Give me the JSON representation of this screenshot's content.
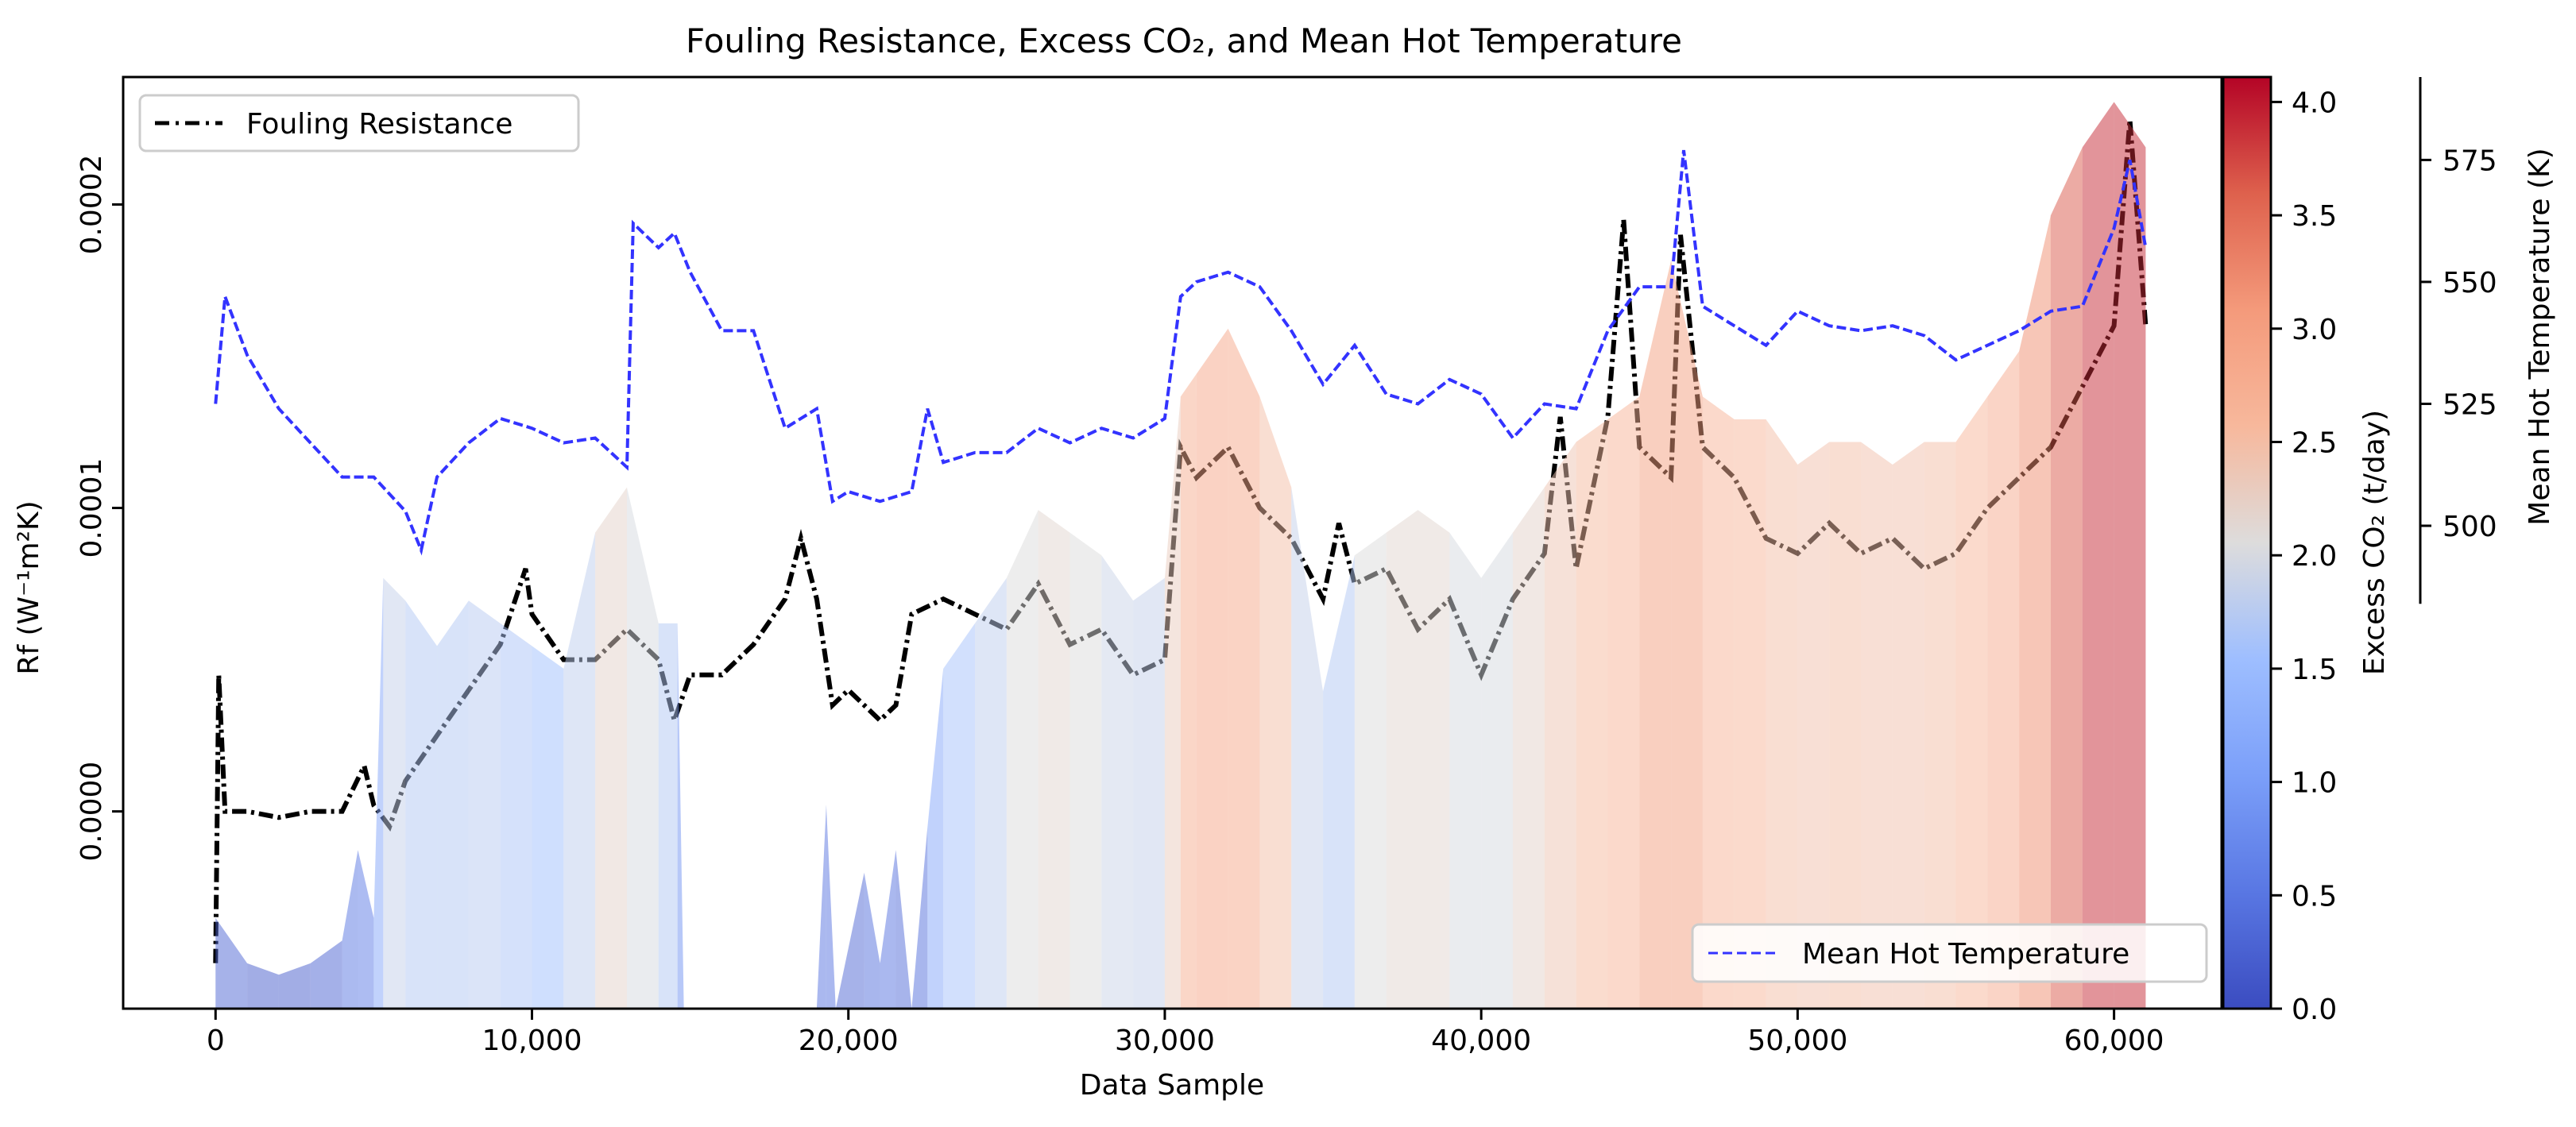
{
  "chart_data": {
    "type": "line",
    "title": "Fouling Resistance, Excess CO₂, and Mean Hot Temperature",
    "xlabel": "Data Sample",
    "ylabel": "Rf (W⁻¹m²K)",
    "y2label": "Mean Hot Temperature (K)",
    "colorbar_label": "Excess CO₂ (t/day)",
    "xlim": [
      -2920,
      63400
    ],
    "ylim": [
      -6.5e-05,
      0.000242
    ],
    "y2lim": [
      401,
      592
    ],
    "y2_spine_range": [
      484,
      592
    ],
    "colorbar_range": [
      0,
      4.11
    ],
    "colormap": "coolwarm",
    "grid": false,
    "x_ticks": [
      0,
      10000,
      20000,
      30000,
      40000,
      50000,
      60000
    ],
    "x_tick_labels": [
      "0",
      "10,000",
      "20,000",
      "30,000",
      "40,000",
      "50,000",
      "60,000"
    ],
    "y_ticks": [
      0,
      0.0001,
      0.0002
    ],
    "y_tick_labels": [
      "0.0000",
      "0.0001",
      "0.0002"
    ],
    "y2_ticks": [
      500,
      525,
      550,
      575
    ],
    "y2_tick_labels": [
      "500",
      "525",
      "550",
      "575"
    ],
    "colorbar_ticks": [
      0,
      0.5,
      1,
      1.5,
      2,
      2.5,
      3,
      3.5,
      4
    ],
    "colorbar_tick_labels": [
      "0.0",
      "0.5",
      "1.0",
      "1.5",
      "2.0",
      "2.5",
      "3.0",
      "3.5",
      "4.0"
    ],
    "legends": [
      {
        "label": "Fouling Resistance",
        "placement": "upper-left",
        "color": "#000000",
        "style": "dash-dot"
      },
      {
        "label": "Mean Hot Temperature",
        "placement": "lower-right",
        "color": "#3333ff",
        "style": "dashed"
      }
    ],
    "series": [
      {
        "name": "Fouling Resistance",
        "axis": "left",
        "color": "#000000",
        "points": [
          [
            0,
            -5e-05
          ],
          [
            100,
            4.5e-05
          ],
          [
            300,
            0.0
          ],
          [
            1000,
            0.0
          ],
          [
            2000,
            -2e-06
          ],
          [
            3000,
            0.0
          ],
          [
            4000,
            0.0
          ],
          [
            4700,
            1.5e-05
          ],
          [
            5000,
            2e-06
          ],
          [
            5500,
            -5e-06
          ],
          [
            6000,
            1e-05
          ],
          [
            7000,
            2.5e-05
          ],
          [
            8000,
            4e-05
          ],
          [
            9000,
            5.5e-05
          ],
          [
            9800,
            8e-05
          ],
          [
            10000,
            6.5e-05
          ],
          [
            11000,
            5e-05
          ],
          [
            12000,
            5e-05
          ],
          [
            13000,
            6e-05
          ],
          [
            14000,
            5e-05
          ],
          [
            14500,
            3e-05
          ],
          [
            15000,
            4.5e-05
          ],
          [
            16000,
            4.5e-05
          ],
          [
            17000,
            5.5e-05
          ],
          [
            18000,
            7e-05
          ],
          [
            18500,
            9e-05
          ],
          [
            19000,
            7e-05
          ],
          [
            19500,
            3.5e-05
          ],
          [
            20000,
            4e-05
          ],
          [
            21000,
            3e-05
          ],
          [
            21500,
            3.5e-05
          ],
          [
            22000,
            6.5e-05
          ],
          [
            23000,
            7e-05
          ],
          [
            24000,
            6.5e-05
          ],
          [
            25000,
            6e-05
          ],
          [
            26000,
            7.5e-05
          ],
          [
            27000,
            5.5e-05
          ],
          [
            28000,
            6e-05
          ],
          [
            29000,
            4.5e-05
          ],
          [
            30000,
            5e-05
          ],
          [
            30500,
            0.00012
          ],
          [
            31000,
            0.00011
          ],
          [
            32000,
            0.00012
          ],
          [
            33000,
            0.0001
          ],
          [
            34000,
            9e-05
          ],
          [
            35000,
            7e-05
          ],
          [
            35500,
            9.5e-05
          ],
          [
            36000,
            7.5e-05
          ],
          [
            37000,
            8e-05
          ],
          [
            38000,
            6e-05
          ],
          [
            39000,
            7e-05
          ],
          [
            40000,
            4.5e-05
          ],
          [
            41000,
            7e-05
          ],
          [
            42000,
            8.5e-05
          ],
          [
            42500,
            0.00013
          ],
          [
            43000,
            8e-05
          ],
          [
            44000,
            0.00013
          ],
          [
            44500,
            0.000195
          ],
          [
            45000,
            0.00012
          ],
          [
            46000,
            0.00011
          ],
          [
            46300,
            0.00019
          ],
          [
            47000,
            0.00012
          ],
          [
            48000,
            0.00011
          ],
          [
            49000,
            9e-05
          ],
          [
            50000,
            8.5e-05
          ],
          [
            51000,
            9.5e-05
          ],
          [
            52000,
            8.5e-05
          ],
          [
            53000,
            9e-05
          ],
          [
            54000,
            8e-05
          ],
          [
            55000,
            8.5e-05
          ],
          [
            56000,
            0.0001
          ],
          [
            57000,
            0.00011
          ],
          [
            58000,
            0.00012
          ],
          [
            59000,
            0.00014
          ],
          [
            60000,
            0.00016
          ],
          [
            60500,
            0.000228
          ],
          [
            61000,
            0.00016
          ]
        ]
      },
      {
        "name": "Mean Hot Temperature",
        "axis": "right",
        "color": "#3333ff",
        "points": [
          [
            0,
            525
          ],
          [
            300,
            547
          ],
          [
            1000,
            535
          ],
          [
            2000,
            524
          ],
          [
            3000,
            517
          ],
          [
            4000,
            510
          ],
          [
            5000,
            510
          ],
          [
            6000,
            503
          ],
          [
            6500,
            495
          ],
          [
            7000,
            510
          ],
          [
            8000,
            517
          ],
          [
            9000,
            522
          ],
          [
            10000,
            520
          ],
          [
            11000,
            517
          ],
          [
            12000,
            518
          ],
          [
            13000,
            512
          ],
          [
            13200,
            562
          ],
          [
            14000,
            557
          ],
          [
            14500,
            560
          ],
          [
            15000,
            552
          ],
          [
            16000,
            540
          ],
          [
            17000,
            540
          ],
          [
            18000,
            520
          ],
          [
            19000,
            524
          ],
          [
            19500,
            505
          ],
          [
            20000,
            507
          ],
          [
            21000,
            505
          ],
          [
            22000,
            507
          ],
          [
            22500,
            524
          ],
          [
            23000,
            513
          ],
          [
            24000,
            515
          ],
          [
            25000,
            515
          ],
          [
            26000,
            520
          ],
          [
            27000,
            517
          ],
          [
            28000,
            520
          ],
          [
            29000,
            518
          ],
          [
            30000,
            522
          ],
          [
            30500,
            547
          ],
          [
            31000,
            550
          ],
          [
            32000,
            552
          ],
          [
            33000,
            549
          ],
          [
            34000,
            540
          ],
          [
            35000,
            529
          ],
          [
            36000,
            537
          ],
          [
            37000,
            527
          ],
          [
            38000,
            525
          ],
          [
            39000,
            530
          ],
          [
            40000,
            527
          ],
          [
            41000,
            518
          ],
          [
            42000,
            525
          ],
          [
            43000,
            524
          ],
          [
            44000,
            540
          ],
          [
            45000,
            549
          ],
          [
            46000,
            549
          ],
          [
            46400,
            577
          ],
          [
            47000,
            545
          ],
          [
            48000,
            541
          ],
          [
            49000,
            537
          ],
          [
            50000,
            544
          ],
          [
            51000,
            541
          ],
          [
            52000,
            540
          ],
          [
            53000,
            541
          ],
          [
            54000,
            539
          ],
          [
            55000,
            534
          ],
          [
            56000,
            537
          ],
          [
            57000,
            540
          ],
          [
            58000,
            544
          ],
          [
            59000,
            545
          ],
          [
            60000,
            561
          ],
          [
            60500,
            575
          ],
          [
            61000,
            557
          ]
        ]
      },
      {
        "name": "Excess CO₂ (t/day)",
        "axis": "colorbar",
        "style": "colored-fill",
        "points": [
          [
            0,
            0.4
          ],
          [
            1000,
            0.2
          ],
          [
            2000,
            0.15
          ],
          [
            3000,
            0.2
          ],
          [
            4000,
            0.3
          ],
          [
            4500,
            0.7
          ],
          [
            5000,
            0.4
          ],
          [
            5300,
            1.9
          ],
          [
            6000,
            1.8
          ],
          [
            7000,
            1.6
          ],
          [
            8000,
            1.8
          ],
          [
            9000,
            1.7
          ],
          [
            10000,
            1.6
          ],
          [
            11000,
            1.5
          ],
          [
            12000,
            2.1
          ],
          [
            13000,
            2.3
          ],
          [
            14000,
            1.7
          ],
          [
            14600,
            1.7
          ],
          [
            14800,
            0
          ],
          [
            19000,
            0
          ],
          [
            19300,
            0.9
          ],
          [
            19600,
            0
          ],
          [
            20500,
            0.6
          ],
          [
            21000,
            0.2
          ],
          [
            21500,
            0.7
          ],
          [
            22000,
            0
          ],
          [
            22500,
            0.8
          ],
          [
            23000,
            1.5
          ],
          [
            24000,
            1.7
          ],
          [
            25000,
            1.9
          ],
          [
            26000,
            2.2
          ],
          [
            27000,
            2.1
          ],
          [
            28000,
            2.0
          ],
          [
            29000,
            1.8
          ],
          [
            30000,
            1.9
          ],
          [
            30500,
            2.7
          ],
          [
            31000,
            2.8
          ],
          [
            32000,
            3.0
          ],
          [
            33000,
            2.7
          ],
          [
            34000,
            2.3
          ],
          [
            35000,
            1.4
          ],
          [
            36000,
            2.0
          ],
          [
            37000,
            2.1
          ],
          [
            38000,
            2.2
          ],
          [
            39000,
            2.1
          ],
          [
            40000,
            1.9
          ],
          [
            41000,
            2.1
          ],
          [
            42000,
            2.3
          ],
          [
            43000,
            2.5
          ],
          [
            44000,
            2.6
          ],
          [
            45000,
            2.7
          ],
          [
            46000,
            3.3
          ],
          [
            47000,
            2.7
          ],
          [
            48000,
            2.6
          ],
          [
            49000,
            2.6
          ],
          [
            50000,
            2.4
          ],
          [
            51000,
            2.5
          ],
          [
            52000,
            2.5
          ],
          [
            53000,
            2.4
          ],
          [
            54000,
            2.5
          ],
          [
            55000,
            2.5
          ],
          [
            56000,
            2.7
          ],
          [
            57000,
            2.9
          ],
          [
            58000,
            3.5
          ],
          [
            59000,
            3.8
          ],
          [
            60000,
            4.0
          ],
          [
            61000,
            3.8
          ]
        ]
      }
    ]
  }
}
